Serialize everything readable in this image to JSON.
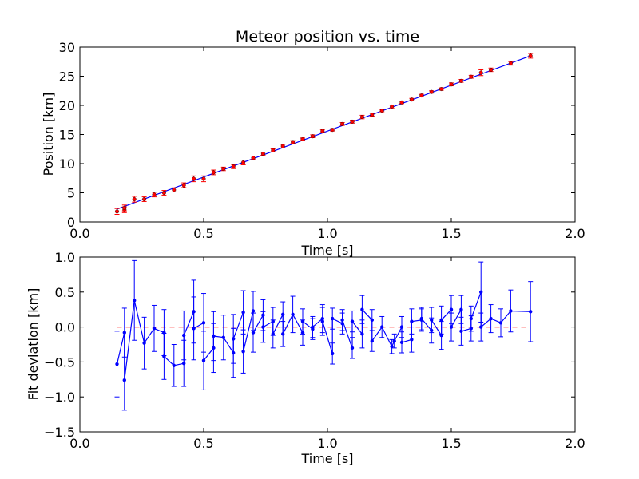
{
  "chart_data": [
    {
      "type": "scatter",
      "title": "Meteor position vs. time",
      "xlabel": "Time [s]",
      "ylabel": "Position [km]",
      "xlim": [
        0.0,
        2.0
      ],
      "ylim": [
        0,
        30
      ],
      "xticks": [
        "0.0",
        "0.5",
        "1.0",
        "1.5",
        "2.0"
      ],
      "yticks": [
        "0",
        "5",
        "10",
        "15",
        "20",
        "25",
        "30"
      ],
      "grid": false,
      "colors": {
        "points": "#ff0000",
        "fit": "#0000ff"
      },
      "series": [
        {
          "kind": "errorbar-points",
          "x": [
            0.15,
            0.18,
            0.18,
            0.22,
            0.26,
            0.3,
            0.34,
            0.38,
            0.42,
            0.46,
            0.5,
            0.54,
            0.58,
            0.62,
            0.66,
            0.7,
            0.74,
            0.78,
            0.82,
            0.86,
            0.9,
            0.94,
            0.98,
            1.02,
            1.06,
            1.1,
            1.14,
            1.18,
            1.22,
            1.26,
            1.3,
            1.34,
            1.38,
            1.42,
            1.46,
            1.5,
            1.54,
            1.58,
            1.62,
            1.66,
            1.74,
            1.82
          ],
          "y": [
            1.8,
            2.1,
            2.4,
            3.9,
            3.9,
            4.7,
            5.0,
            5.5,
            6.3,
            7.4,
            7.4,
            8.5,
            9.1,
            9.5,
            10.2,
            11.0,
            11.7,
            12.3,
            13.0,
            13.7,
            14.2,
            14.7,
            15.6,
            15.8,
            16.8,
            17.2,
            18.0,
            18.4,
            19.1,
            19.8,
            20.5,
            21.0,
            21.7,
            22.3,
            22.8,
            23.6,
            24.2,
            24.9,
            25.6,
            26.1,
            27.2,
            28.5
          ],
          "yerr": [
            0.5,
            0.5,
            0.5,
            0.5,
            0.4,
            0.4,
            0.4,
            0.35,
            0.4,
            0.5,
            0.5,
            0.4,
            0.3,
            0.35,
            0.4,
            0.3,
            0.25,
            0.25,
            0.3,
            0.25,
            0.2,
            0.25,
            0.25,
            0.2,
            0.25,
            0.25,
            0.3,
            0.25,
            0.2,
            0.25,
            0.2,
            0.2,
            0.2,
            0.2,
            0.2,
            0.25,
            0.25,
            0.25,
            0.5,
            0.3,
            0.3,
            0.4
          ]
        },
        {
          "kind": "fit-line",
          "x": [
            0.15,
            1.82
          ],
          "y": [
            2.2,
            28.5
          ]
        }
      ]
    },
    {
      "type": "line",
      "title": "",
      "xlabel": "Time [s]",
      "ylabel": "Fit deviation [km]",
      "xlim": [
        0.0,
        2.0
      ],
      "ylim": [
        -1.5,
        1.0
      ],
      "xticks": [
        "0.0",
        "0.5",
        "1.0",
        "1.5",
        "2.0"
      ],
      "yticks": [
        "−1.5",
        "−1.0",
        "−0.5",
        "0.0",
        "0.5",
        "1.0"
      ],
      "grid": false,
      "colors": {
        "residuals": "#0000ff",
        "zero": "#ff0000"
      },
      "series": [
        {
          "kind": "residuals",
          "x": [
            0.15,
            0.18,
            0.18,
            0.22,
            0.26,
            0.3,
            0.34,
            0.34,
            0.38,
            0.42,
            0.42,
            0.46,
            0.46,
            0.5,
            0.5,
            0.54,
            0.54,
            0.58,
            0.62,
            0.62,
            0.66,
            0.66,
            0.7,
            0.7,
            0.74,
            0.74,
            0.78,
            0.78,
            0.82,
            0.82,
            0.86,
            0.9,
            0.9,
            0.94,
            0.94,
            0.98,
            0.98,
            1.02,
            1.02,
            1.06,
            1.06,
            1.1,
            1.1,
            1.14,
            1.14,
            1.18,
            1.18,
            1.22,
            1.26,
            1.27,
            1.3,
            1.3,
            1.34,
            1.34,
            1.38,
            1.38,
            1.42,
            1.42,
            1.46,
            1.46,
            1.5,
            1.5,
            1.54,
            1.54,
            1.58,
            1.58,
            1.62,
            1.62,
            1.66,
            1.7,
            1.74,
            1.82
          ],
          "y": [
            -0.53,
            -0.08,
            -0.76,
            0.38,
            -0.23,
            -0.02,
            -0.08,
            -0.42,
            -0.55,
            -0.52,
            -0.12,
            0.22,
            -0.02,
            0.06,
            -0.48,
            -0.3,
            -0.13,
            -0.15,
            -0.37,
            -0.17,
            0.21,
            -0.35,
            0.23,
            -0.08,
            0.17,
            0.0,
            0.08,
            -0.1,
            0.18,
            -0.1,
            0.18,
            -0.08,
            0.08,
            -0.03,
            0.0,
            0.12,
            0.08,
            -0.38,
            0.12,
            0.05,
            0.1,
            -0.3,
            0.08,
            -0.1,
            0.25,
            0.1,
            -0.2,
            0.0,
            -0.28,
            -0.2,
            0.0,
            -0.22,
            -0.18,
            0.08,
            0.1,
            0.12,
            -0.05,
            0.1,
            -0.12,
            0.1,
            0.25,
            0.0,
            0.25,
            -0.06,
            -0.02,
            0.12,
            0.5,
            0.0,
            0.12,
            0.06,
            0.23,
            0.22
          ],
          "yerr": [
            0.47,
            0.35,
            0.43,
            0.57,
            0.37,
            0.33,
            0.33,
            0.33,
            0.3,
            0.33,
            0.35,
            0.45,
            0.45,
            0.42,
            0.42,
            0.35,
            0.35,
            0.32,
            0.35,
            0.35,
            0.31,
            0.31,
            0.28,
            0.28,
            0.22,
            0.22,
            0.2,
            0.2,
            0.18,
            0.18,
            0.26,
            0.18,
            0.18,
            0.15,
            0.15,
            0.2,
            0.2,
            0.15,
            0.15,
            0.15,
            0.15,
            0.15,
            0.15,
            0.2,
            0.2,
            0.15,
            0.15,
            0.15,
            0.1,
            0.1,
            0.15,
            0.15,
            0.18,
            0.18,
            0.16,
            0.16,
            0.18,
            0.18,
            0.2,
            0.2,
            0.2,
            0.2,
            0.2,
            0.2,
            0.18,
            0.18,
            0.43,
            0.2,
            0.2,
            0.2,
            0.3,
            0.43
          ]
        },
        {
          "kind": "zero-line",
          "x": [
            0.15,
            1.82
          ],
          "y": [
            0.0,
            0.0
          ]
        }
      ]
    }
  ]
}
